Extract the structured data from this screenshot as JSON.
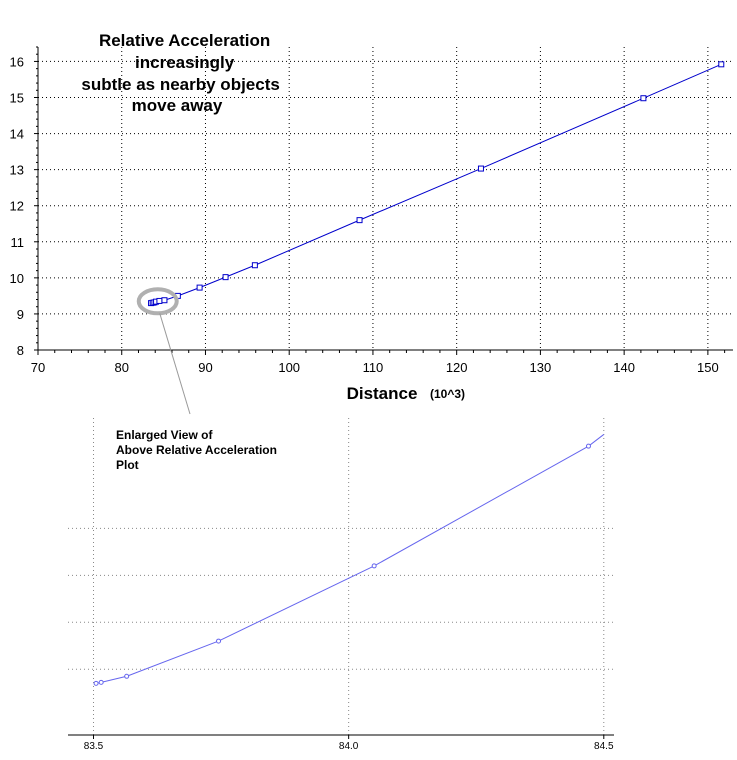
{
  "chart_data": [
    {
      "type": "line",
      "annotation": [
        "Relative Acceleration",
        "increasingly",
        "subtle as nearby objects",
        "move away"
      ],
      "xlabel": "Distance",
      "xlabel_unit": "(10^3)",
      "ylabel": "",
      "xlim": [
        70,
        153
      ],
      "ylim": [
        8,
        16.4
      ],
      "xticks": [
        "70",
        "80",
        "90",
        "100",
        "110",
        "120",
        "130",
        "140",
        "150"
      ],
      "yticks": [
        "8",
        "9",
        "10",
        "11",
        "12",
        "13",
        "14",
        "15",
        "16"
      ],
      "grid": true,
      "series": [
        {
          "color": "#0000cc",
          "marker": "square",
          "x": [
            83.5,
            83.7,
            83.9,
            84.1,
            84.5,
            85.1,
            86.7,
            89.3,
            92.4,
            95.9,
            108.4,
            122.9,
            142.3,
            151.6
          ],
          "y": [
            9.3,
            9.31,
            9.32,
            9.34,
            9.36,
            9.38,
            9.5,
            9.73,
            10.02,
            10.35,
            11.6,
            13.03,
            14.98,
            15.92
          ]
        }
      ],
      "highlight_label": "",
      "highlight_region": {
        "x": 84.3,
        "y": 9.35
      }
    },
    {
      "type": "line",
      "annotation": [
        "Enlarged View of",
        "Above Relative Acceleration",
        "Plot"
      ],
      "xlabel": "",
      "ylabel": "",
      "xlim": [
        83.45,
        84.52
      ],
      "xticks": [
        "83.5",
        "84.0",
        "84.5"
      ],
      "grid": true,
      "series": [
        {
          "color": "#6666ee",
          "marker": "circle",
          "x": [
            83.505,
            83.515,
            83.565,
            83.745,
            84.05,
            84.47,
            84.5
          ],
          "y": [
            9.27,
            9.272,
            9.285,
            9.36,
            9.52,
            9.775,
            9.8
          ]
        }
      ]
    }
  ]
}
